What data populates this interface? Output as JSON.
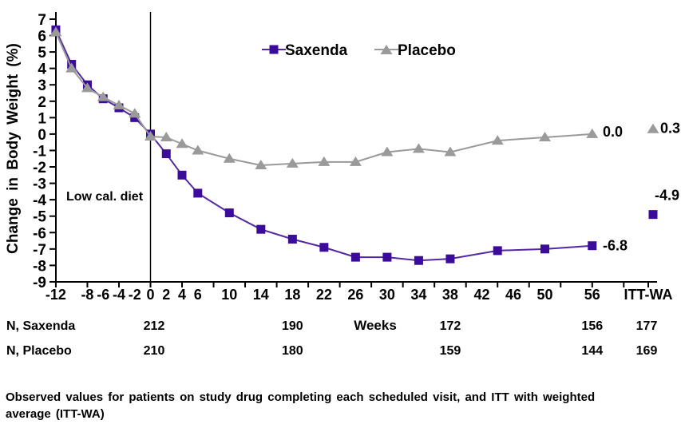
{
  "chart_data": {
    "type": "line",
    "title": "",
    "ylabel": "Change in Body Weight (%)",
    "xlabel": "Weeks",
    "ylim": [
      -9,
      7
    ],
    "ytick_step": 1,
    "grid": false,
    "legend_position": "top-center",
    "annotation": "Low cal. diet",
    "itt_wa_axis_label": "ITT-WA",
    "xtick_labeled_weeks": [
      -12,
      -8,
      -6,
      -4,
      -2,
      0,
      2,
      4,
      6,
      10,
      14,
      18,
      22,
      26,
      30,
      34,
      38,
      42,
      46,
      50,
      56
    ],
    "weeks": [
      -12,
      -10,
      -8,
      -6,
      -4,
      -2,
      0,
      2,
      4,
      6,
      10,
      14,
      18,
      22,
      26,
      30,
      34,
      38,
      44,
      50,
      56
    ],
    "series": [
      {
        "name": "Saxenda",
        "marker": "square",
        "marker_color": "#3b0b9a",
        "line_color": "#5328a2",
        "values": [
          6.35,
          4.25,
          3.0,
          2.15,
          1.6,
          1.0,
          0.0,
          -1.2,
          -2.5,
          -3.6,
          -4.8,
          -5.8,
          -6.4,
          -6.9,
          -7.5,
          -7.5,
          -7.7,
          -7.6,
          -7.1,
          -7.0,
          -6.8
        ],
        "itt_wa_value": -4.9,
        "week56_label": "-6.8",
        "itt_wa_label": "-4.9"
      },
      {
        "name": "Placebo",
        "marker": "triangle",
        "marker_color": "#9a9a9a",
        "line_color": "#9a9a9a",
        "values": [
          6.2,
          4.0,
          2.8,
          2.25,
          1.75,
          1.25,
          -0.15,
          -0.2,
          -0.6,
          -1.0,
          -1.5,
          -1.9,
          -1.8,
          -1.7,
          -1.7,
          -1.1,
          -0.9,
          -1.1,
          -0.4,
          -0.2,
          0.0
        ],
        "itt_wa_value": 0.3,
        "week56_label": "0.0",
        "itt_wa_label": "0.3"
      }
    ],
    "n_rows": [
      {
        "label": "N, Saxenda",
        "counts": [
          "212",
          "190",
          "172",
          "156",
          "177"
        ]
      },
      {
        "label": "N, Placebo",
        "counts": [
          "210",
          "180",
          "159",
          "144",
          "169"
        ]
      }
    ],
    "n_count_weeks": [
      0,
      18,
      38,
      56,
      "ITT-WA"
    ],
    "axis_color": "#000000"
  },
  "footer": {
    "text": "Observed values for patients on study drug completing each scheduled visit, and ITT with weighted average (ITT-WA)"
  }
}
